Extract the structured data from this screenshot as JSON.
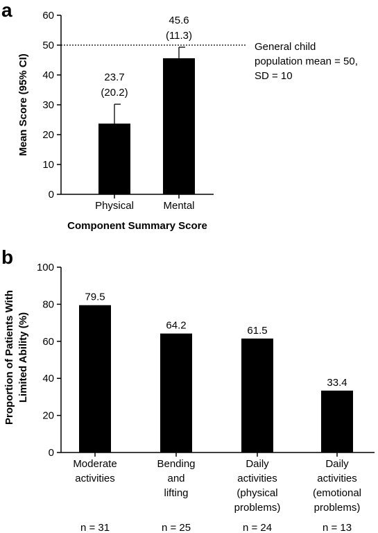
{
  "chart_data": [
    {
      "panel": "a",
      "type": "bar",
      "categories": [
        "Physical",
        "Mental"
      ],
      "values": [
        23.7,
        45.6
      ],
      "error_upper": [
        30.2,
        49.3
      ],
      "value_labels": [
        "23.7",
        "45.6"
      ],
      "sd_labels": [
        "(20.2)",
        "(11.3)"
      ],
      "xlabel": "Component Summary Score",
      "ylabel": "Mean Score (95% CI)",
      "ylim": [
        0,
        60
      ],
      "yticks": [
        0,
        10,
        20,
        30,
        40,
        50,
        60
      ],
      "reference_line": {
        "value": 50,
        "label_lines": [
          "General child",
          "population mean = 50,",
          "SD = 10"
        ]
      }
    },
    {
      "panel": "b",
      "type": "bar",
      "categories": [
        [
          "Moderate",
          "activities"
        ],
        [
          "Bending",
          "and",
          "lifting"
        ],
        [
          "Daily",
          "activities",
          "(physical",
          "problems)"
        ],
        [
          "Daily",
          "activities",
          "(emotional",
          "problems)"
        ]
      ],
      "values": [
        79.5,
        64.2,
        61.5,
        33.4
      ],
      "value_labels": [
        "79.5",
        "64.2",
        "61.5",
        "33.4"
      ],
      "n_labels": [
        "n = 31",
        "n = 25",
        "n = 24",
        "n = 13"
      ],
      "ylabel_lines": [
        "Proportion of Patients With",
        "Limited Ability (%)"
      ],
      "ylim": [
        0,
        100
      ],
      "yticks": [
        0,
        20,
        40,
        60,
        80,
        100
      ]
    }
  ]
}
